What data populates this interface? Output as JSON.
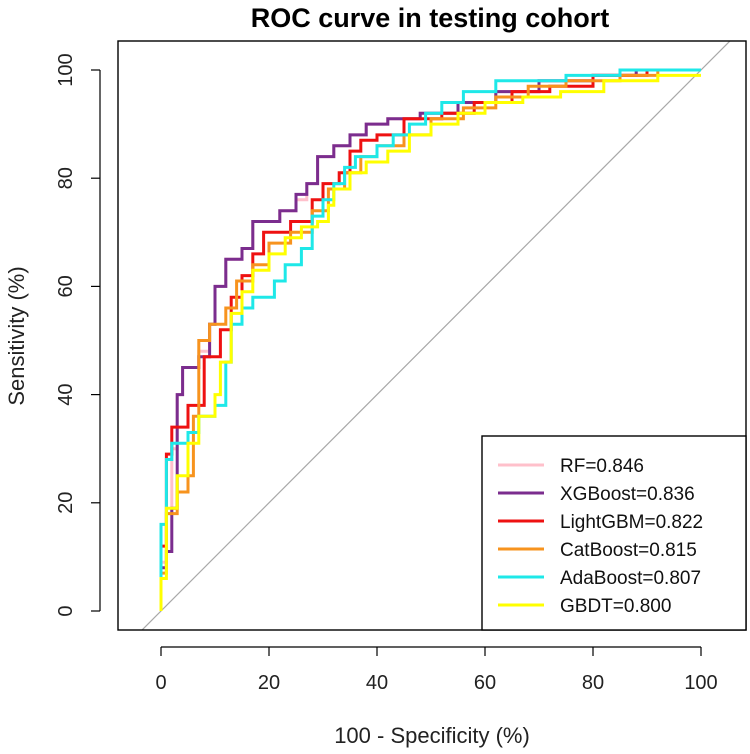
{
  "chart_data": {
    "type": "line",
    "title": "ROC curve in testing cohort",
    "xlabel": "100 - Specificity (%)",
    "ylabel": "Sensitivity (%)",
    "xlim": [
      -4,
      104
    ],
    "ylim": [
      -4,
      104
    ],
    "xticks": [
      0,
      20,
      40,
      60,
      80,
      100
    ],
    "yticks": [
      0,
      20,
      40,
      60,
      80,
      100
    ],
    "xtick_labels": [
      "0",
      "20",
      "40",
      "60",
      "80",
      "100"
    ],
    "ytick_labels": [
      "0",
      "20",
      "40",
      "60",
      "80",
      "100"
    ],
    "legend_position": "bottom-right",
    "reference_line": {
      "color": "#a8a8a8",
      "points": [
        [
          0,
          0
        ],
        [
          100,
          100
        ]
      ]
    },
    "series": [
      {
        "name": "RF",
        "label": "RF=0.846",
        "color": "#ffc0cb",
        "points": [
          [
            0,
            0
          ],
          [
            0,
            9
          ],
          [
            1,
            9
          ],
          [
            1,
            18
          ],
          [
            2,
            18
          ],
          [
            2,
            30
          ],
          [
            3,
            30
          ],
          [
            3,
            40
          ],
          [
            4,
            40
          ],
          [
            4,
            45
          ],
          [
            7,
            45
          ],
          [
            7,
            48
          ],
          [
            9,
            48
          ],
          [
            9,
            53
          ],
          [
            10,
            53
          ],
          [
            10,
            60
          ],
          [
            12,
            60
          ],
          [
            12,
            65
          ],
          [
            15,
            65
          ],
          [
            15,
            67
          ],
          [
            17,
            67
          ],
          [
            17,
            72
          ],
          [
            22,
            72
          ],
          [
            22,
            74
          ],
          [
            25,
            74
          ],
          [
            25,
            76
          ],
          [
            27,
            76
          ],
          [
            27,
            79
          ],
          [
            29,
            79
          ],
          [
            29,
            84
          ],
          [
            32,
            84
          ],
          [
            32,
            86
          ],
          [
            35,
            86
          ],
          [
            35,
            88
          ],
          [
            38,
            88
          ],
          [
            38,
            90
          ],
          [
            42,
            90
          ],
          [
            42,
            91
          ],
          [
            48,
            91
          ],
          [
            48,
            92
          ],
          [
            55,
            92
          ],
          [
            55,
            94
          ],
          [
            62,
            94
          ],
          [
            62,
            96
          ],
          [
            70,
            96
          ],
          [
            70,
            98
          ],
          [
            80,
            98
          ],
          [
            80,
            99
          ],
          [
            88,
            99
          ],
          [
            88,
            100
          ],
          [
            100,
            100
          ]
        ]
      },
      {
        "name": "XGBoost",
        "label": "XGBoost=0.836",
        "color": "#7b2d8e",
        "points": [
          [
            0,
            0
          ],
          [
            0,
            8
          ],
          [
            1,
            8
          ],
          [
            1,
            11
          ],
          [
            2,
            11
          ],
          [
            2,
            19
          ],
          [
            3,
            19
          ],
          [
            3,
            40
          ],
          [
            4,
            40
          ],
          [
            4,
            45
          ],
          [
            7,
            45
          ],
          [
            7,
            47
          ],
          [
            9,
            47
          ],
          [
            9,
            53
          ],
          [
            10,
            53
          ],
          [
            10,
            60
          ],
          [
            12,
            60
          ],
          [
            12,
            65
          ],
          [
            15,
            65
          ],
          [
            15,
            67
          ],
          [
            17,
            67
          ],
          [
            17,
            72
          ],
          [
            22,
            72
          ],
          [
            22,
            74
          ],
          [
            25,
            74
          ],
          [
            25,
            77
          ],
          [
            27,
            77
          ],
          [
            27,
            79
          ],
          [
            29,
            79
          ],
          [
            29,
            84
          ],
          [
            32,
            84
          ],
          [
            32,
            86
          ],
          [
            35,
            86
          ],
          [
            35,
            88
          ],
          [
            38,
            88
          ],
          [
            38,
            90
          ],
          [
            42,
            90
          ],
          [
            42,
            91
          ],
          [
            48,
            91
          ],
          [
            48,
            92
          ],
          [
            55,
            92
          ],
          [
            55,
            94
          ],
          [
            62,
            94
          ],
          [
            62,
            96
          ],
          [
            70,
            96
          ],
          [
            70,
            98
          ],
          [
            80,
            98
          ],
          [
            80,
            99
          ],
          [
            88,
            99
          ],
          [
            88,
            100
          ],
          [
            100,
            100
          ]
        ]
      },
      {
        "name": "LightGBM",
        "label": "LightGBM=0.822",
        "color": "#ee1111",
        "points": [
          [
            0,
            0
          ],
          [
            0,
            12
          ],
          [
            1,
            12
          ],
          [
            1,
            29
          ],
          [
            2,
            29
          ],
          [
            2,
            34
          ],
          [
            5,
            34
          ],
          [
            5,
            38
          ],
          [
            8,
            38
          ],
          [
            8,
            47
          ],
          [
            11,
            47
          ],
          [
            11,
            52
          ],
          [
            13,
            52
          ],
          [
            13,
            58
          ],
          [
            15,
            58
          ],
          [
            15,
            62
          ],
          [
            17,
            62
          ],
          [
            17,
            66
          ],
          [
            19,
            66
          ],
          [
            19,
            70
          ],
          [
            24,
            70
          ],
          [
            24,
            72
          ],
          [
            28,
            72
          ],
          [
            28,
            76
          ],
          [
            30,
            76
          ],
          [
            30,
            79
          ],
          [
            33,
            79
          ],
          [
            33,
            81
          ],
          [
            35,
            81
          ],
          [
            35,
            85
          ],
          [
            37,
            85
          ],
          [
            37,
            87
          ],
          [
            40,
            87
          ],
          [
            40,
            88
          ],
          [
            45,
            88
          ],
          [
            45,
            91
          ],
          [
            52,
            91
          ],
          [
            52,
            92
          ],
          [
            58,
            92
          ],
          [
            58,
            94
          ],
          [
            65,
            94
          ],
          [
            65,
            96
          ],
          [
            72,
            96
          ],
          [
            72,
            97
          ],
          [
            80,
            97
          ],
          [
            80,
            99
          ],
          [
            90,
            99
          ],
          [
            90,
            100
          ],
          [
            100,
            100
          ]
        ]
      },
      {
        "name": "CatBoost",
        "label": "CatBoost=0.815",
        "color": "#f7931e",
        "points": [
          [
            0,
            0
          ],
          [
            0,
            7
          ],
          [
            1,
            7
          ],
          [
            1,
            18
          ],
          [
            3,
            18
          ],
          [
            3,
            22
          ],
          [
            5,
            22
          ],
          [
            5,
            25
          ],
          [
            6,
            25
          ],
          [
            6,
            36
          ],
          [
            7,
            36
          ],
          [
            7,
            50
          ],
          [
            9,
            50
          ],
          [
            9,
            53
          ],
          [
            12,
            53
          ],
          [
            12,
            56
          ],
          [
            14,
            56
          ],
          [
            14,
            61
          ],
          [
            17,
            61
          ],
          [
            17,
            64
          ],
          [
            20,
            64
          ],
          [
            20,
            68
          ],
          [
            24,
            68
          ],
          [
            24,
            70
          ],
          [
            28,
            70
          ],
          [
            28,
            74
          ],
          [
            31,
            74
          ],
          [
            31,
            78
          ],
          [
            34,
            78
          ],
          [
            34,
            81
          ],
          [
            37,
            81
          ],
          [
            37,
            84
          ],
          [
            40,
            84
          ],
          [
            40,
            86
          ],
          [
            45,
            86
          ],
          [
            45,
            88
          ],
          [
            50,
            88
          ],
          [
            50,
            91
          ],
          [
            56,
            91
          ],
          [
            56,
            93
          ],
          [
            62,
            93
          ],
          [
            62,
            95
          ],
          [
            68,
            95
          ],
          [
            68,
            97
          ],
          [
            75,
            97
          ],
          [
            75,
            98
          ],
          [
            85,
            98
          ],
          [
            85,
            99
          ],
          [
            92,
            99
          ],
          [
            92,
            100
          ],
          [
            100,
            100
          ]
        ]
      },
      {
        "name": "AdaBoost",
        "label": "AdaBoost=0.807",
        "color": "#1ee8e8",
        "points": [
          [
            0,
            0
          ],
          [
            0,
            16
          ],
          [
            1,
            16
          ],
          [
            1,
            28
          ],
          [
            2,
            28
          ],
          [
            2,
            31
          ],
          [
            5,
            31
          ],
          [
            5,
            33
          ],
          [
            7,
            33
          ],
          [
            7,
            36
          ],
          [
            10,
            36
          ],
          [
            10,
            38
          ],
          [
            12,
            38
          ],
          [
            12,
            46
          ],
          [
            13,
            46
          ],
          [
            13,
            53
          ],
          [
            15,
            53
          ],
          [
            15,
            56
          ],
          [
            17,
            56
          ],
          [
            17,
            58
          ],
          [
            21,
            58
          ],
          [
            21,
            61
          ],
          [
            23,
            61
          ],
          [
            23,
            64
          ],
          [
            26,
            64
          ],
          [
            26,
            67
          ],
          [
            28,
            67
          ],
          [
            28,
            73
          ],
          [
            30,
            73
          ],
          [
            30,
            76
          ],
          [
            32,
            76
          ],
          [
            32,
            79
          ],
          [
            34,
            79
          ],
          [
            34,
            82
          ],
          [
            36,
            82
          ],
          [
            36,
            84
          ],
          [
            40,
            84
          ],
          [
            40,
            86
          ],
          [
            43,
            86
          ],
          [
            43,
            88
          ],
          [
            46,
            88
          ],
          [
            46,
            90
          ],
          [
            49,
            90
          ],
          [
            49,
            92
          ],
          [
            52,
            92
          ],
          [
            52,
            94
          ],
          [
            56,
            94
          ],
          [
            56,
            96
          ],
          [
            62,
            96
          ],
          [
            62,
            98
          ],
          [
            75,
            98
          ],
          [
            75,
            99
          ],
          [
            85,
            99
          ],
          [
            85,
            100
          ],
          [
            100,
            100
          ]
        ]
      },
      {
        "name": "GBDT",
        "label": "GBDT=0.800",
        "color": "#ffff00",
        "points": [
          [
            0,
            0
          ],
          [
            0,
            6
          ],
          [
            1,
            6
          ],
          [
            1,
            19
          ],
          [
            3,
            19
          ],
          [
            3,
            25
          ],
          [
            5,
            25
          ],
          [
            5,
            31
          ],
          [
            7,
            31
          ],
          [
            7,
            36
          ],
          [
            10,
            36
          ],
          [
            10,
            40
          ],
          [
            11,
            40
          ],
          [
            11,
            46
          ],
          [
            13,
            46
          ],
          [
            13,
            55
          ],
          [
            15,
            55
          ],
          [
            15,
            59
          ],
          [
            17,
            59
          ],
          [
            17,
            63
          ],
          [
            20,
            63
          ],
          [
            20,
            66
          ],
          [
            23,
            66
          ],
          [
            23,
            69
          ],
          [
            26,
            69
          ],
          [
            26,
            71
          ],
          [
            29,
            71
          ],
          [
            29,
            72
          ],
          [
            31,
            72
          ],
          [
            31,
            75
          ],
          [
            32,
            75
          ],
          [
            32,
            78
          ],
          [
            35,
            78
          ],
          [
            35,
            81
          ],
          [
            38,
            81
          ],
          [
            38,
            83
          ],
          [
            42,
            83
          ],
          [
            42,
            85
          ],
          [
            46,
            85
          ],
          [
            46,
            88
          ],
          [
            50,
            88
          ],
          [
            50,
            90
          ],
          [
            55,
            90
          ],
          [
            55,
            92
          ],
          [
            60,
            92
          ],
          [
            60,
            94
          ],
          [
            67,
            94
          ],
          [
            67,
            95
          ],
          [
            74,
            95
          ],
          [
            74,
            96
          ],
          [
            82,
            96
          ],
          [
            82,
            98
          ],
          [
            92,
            98
          ],
          [
            92,
            99
          ],
          [
            100,
            99
          ]
        ]
      }
    ]
  }
}
